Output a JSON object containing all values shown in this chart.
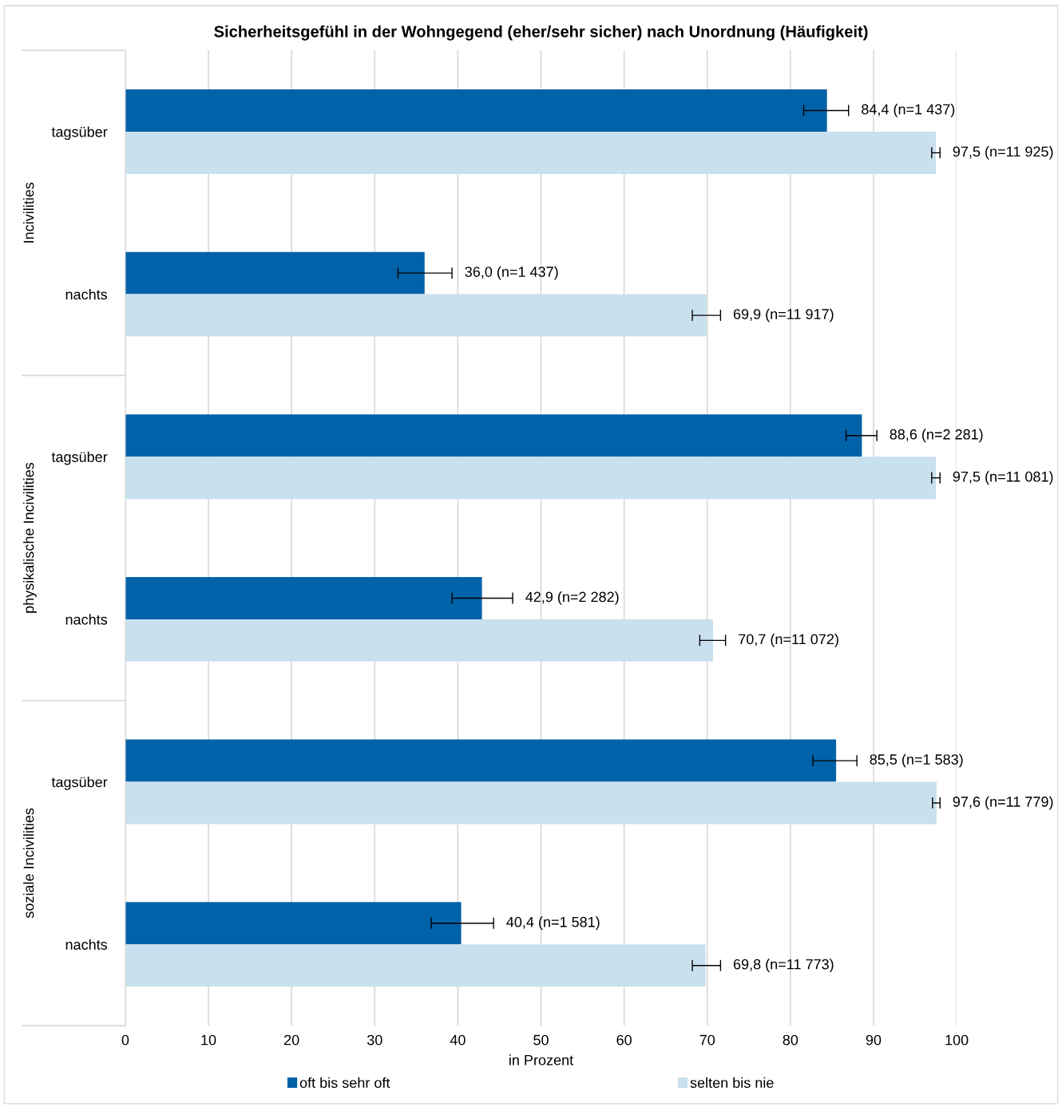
{
  "chart_data": {
    "type": "bar",
    "orientation": "horizontal",
    "title": "Sicherheitsgefühl in der Wohngegend (eher/sehr sicher) nach Unordnung (Häufigkeit)",
    "xlabel": "in Prozent",
    "categories": [
      "tagsüber",
      "nachts",
      "tagsüber",
      "nachts",
      "tagsüber",
      "nachts"
    ],
    "annotations": [
      "Incivilities",
      "physikalische Incivilities",
      "soziale Incivilities"
    ],
    "series": [
      {
        "name": "oft bis sehr oft",
        "color": "#0062a8",
        "values": [
          84.4,
          36.0,
          88.6,
          42.9,
          85.5,
          40.4
        ],
        "errors": [
          [
            81.6,
            87.0
          ],
          [
            32.8,
            39.3
          ],
          [
            86.7,
            90.4
          ],
          [
            39.3,
            46.6
          ],
          [
            82.7,
            88.0
          ],
          [
            36.8,
            44.3
          ]
        ],
        "value_labels": [
          "84,4 (n=1 437)",
          "36,0 (n=1 437)",
          "88,6 (n=2 281)",
          "42,9 (n=2 282)",
          "85,5 (n=1 583)",
          "40,4 (n=1 581)"
        ]
      },
      {
        "name": "selten bis nie",
        "color": "#c9e0ee",
        "values": [
          97.5,
          69.9,
          97.5,
          70.7,
          97.6,
          69.8
        ],
        "errors": [
          [
            97.0,
            98.0
          ],
          [
            68.2,
            71.6
          ],
          [
            97.0,
            98.0
          ],
          [
            69.1,
            72.2
          ],
          [
            97.1,
            98.0
          ],
          [
            68.2,
            71.6
          ]
        ],
        "value_labels": [
          "97,5 (n=11 925)",
          "69,9 (n=11 917)",
          "97,5 (n=11 081)",
          "70,7 (n=11 072)",
          "97,6 (n=11 779)",
          "69,8 (n=11 773)"
        ]
      }
    ],
    "xlim": [
      0,
      100
    ],
    "xticks": [
      0,
      10,
      20,
      30,
      40,
      50,
      60,
      70,
      80,
      90,
      100
    ],
    "grid": "x",
    "legend": "bottom"
  }
}
